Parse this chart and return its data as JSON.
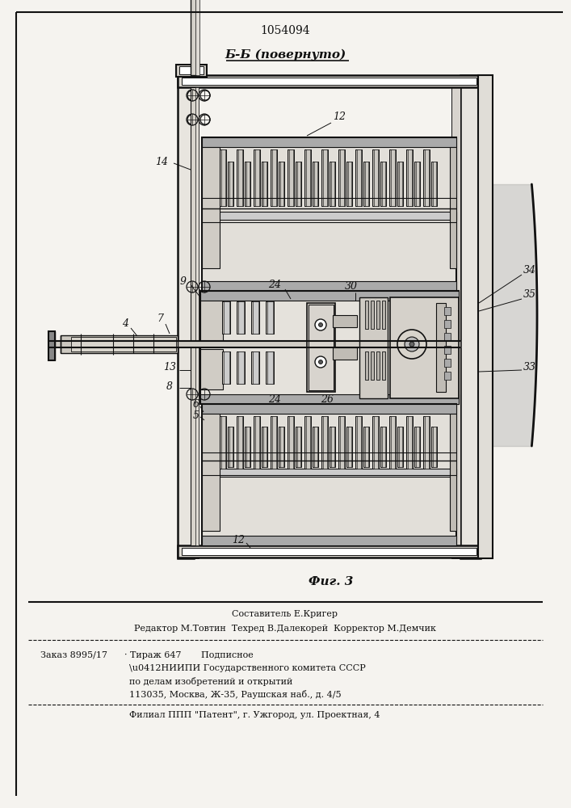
{
  "patent_number": "1054094",
  "section_label": "Б-Б (повернуто)",
  "fig_label": "Фиг. 3",
  "bg_color": "#f5f3ef",
  "line_color": "#111111",
  "footer_lines": [
    "Составитель Е.Кригер",
    "Редактор М.Товтин  Техред В.Далекорей  Корректор М.Демчик",
    "Заказ 8995/17      · Тираж 647       Подписное",
    "\\u0412НИИПИ Государственного комитета СССР",
    "по делам изобретений и открытий",
    "113035, Москва, Ж-35, Раушская наб., д. 4/5",
    "Филиал ППП \"Патент\", г. Ужгород, ул. Проектная, 4"
  ]
}
